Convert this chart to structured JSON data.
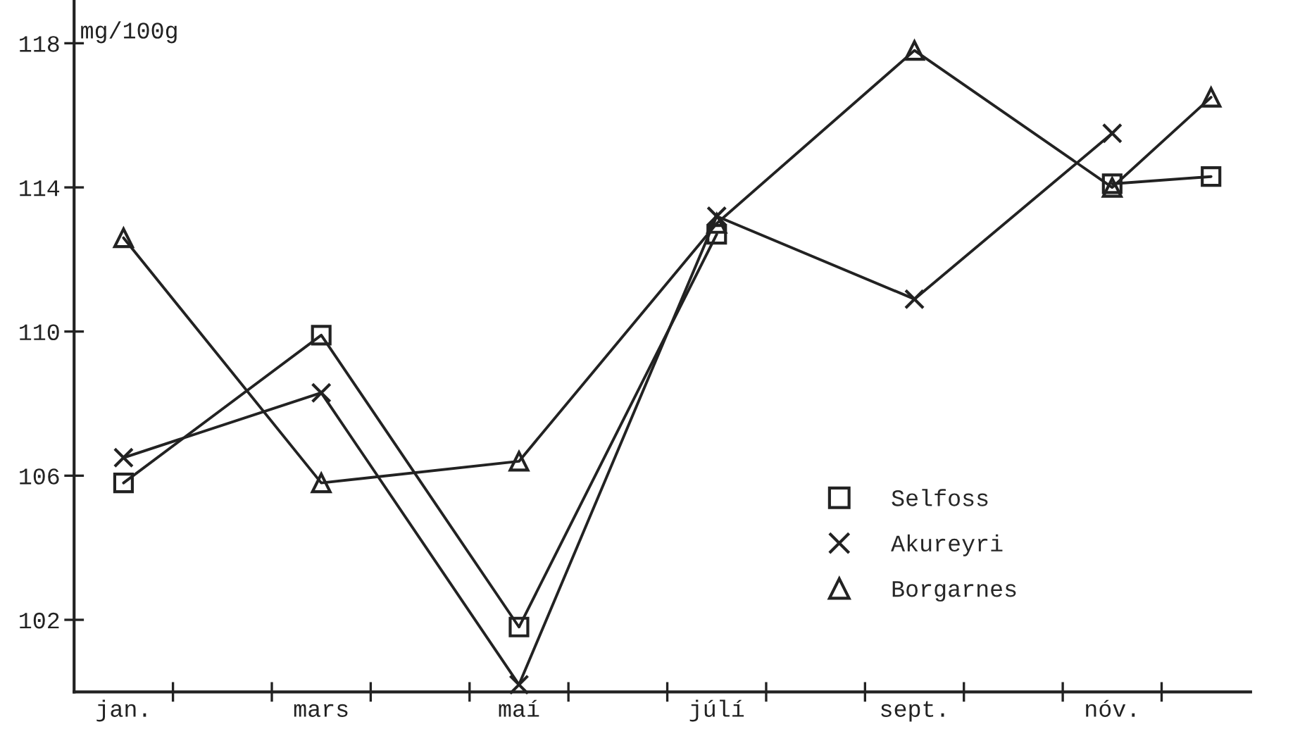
{
  "chart_data": {
    "type": "line",
    "ylabel": "mg/100g",
    "categories": [
      "jan.",
      null,
      "mars",
      null,
      "maí",
      null,
      "júlí",
      null,
      "sept.",
      null,
      "nóv.",
      null
    ],
    "ylim": [
      100,
      119.2
    ],
    "yticks": [
      102,
      106,
      110,
      114,
      118
    ],
    "grid": false,
    "legend": "lower right",
    "line_style": "solid",
    "series": [
      {
        "name": "Selfoss",
        "color": "#222222",
        "marker": "square",
        "values": [
          105.8,
          null,
          109.9,
          null,
          101.8,
          null,
          112.7,
          null,
          null,
          null,
          114.1,
          114.3
        ]
      },
      {
        "name": "Akureyri",
        "color": "#222222",
        "marker": "cross",
        "values": [
          106.5,
          null,
          108.3,
          null,
          100.2,
          null,
          113.2,
          null,
          110.9,
          null,
          115.5,
          null
        ]
      },
      {
        "name": "Borgarnes",
        "color": "#222222",
        "marker": "triangle",
        "values": [
          112.6,
          null,
          105.8,
          null,
          106.4,
          null,
          113.0,
          null,
          117.8,
          null,
          114.0,
          116.5
        ]
      }
    ]
  }
}
